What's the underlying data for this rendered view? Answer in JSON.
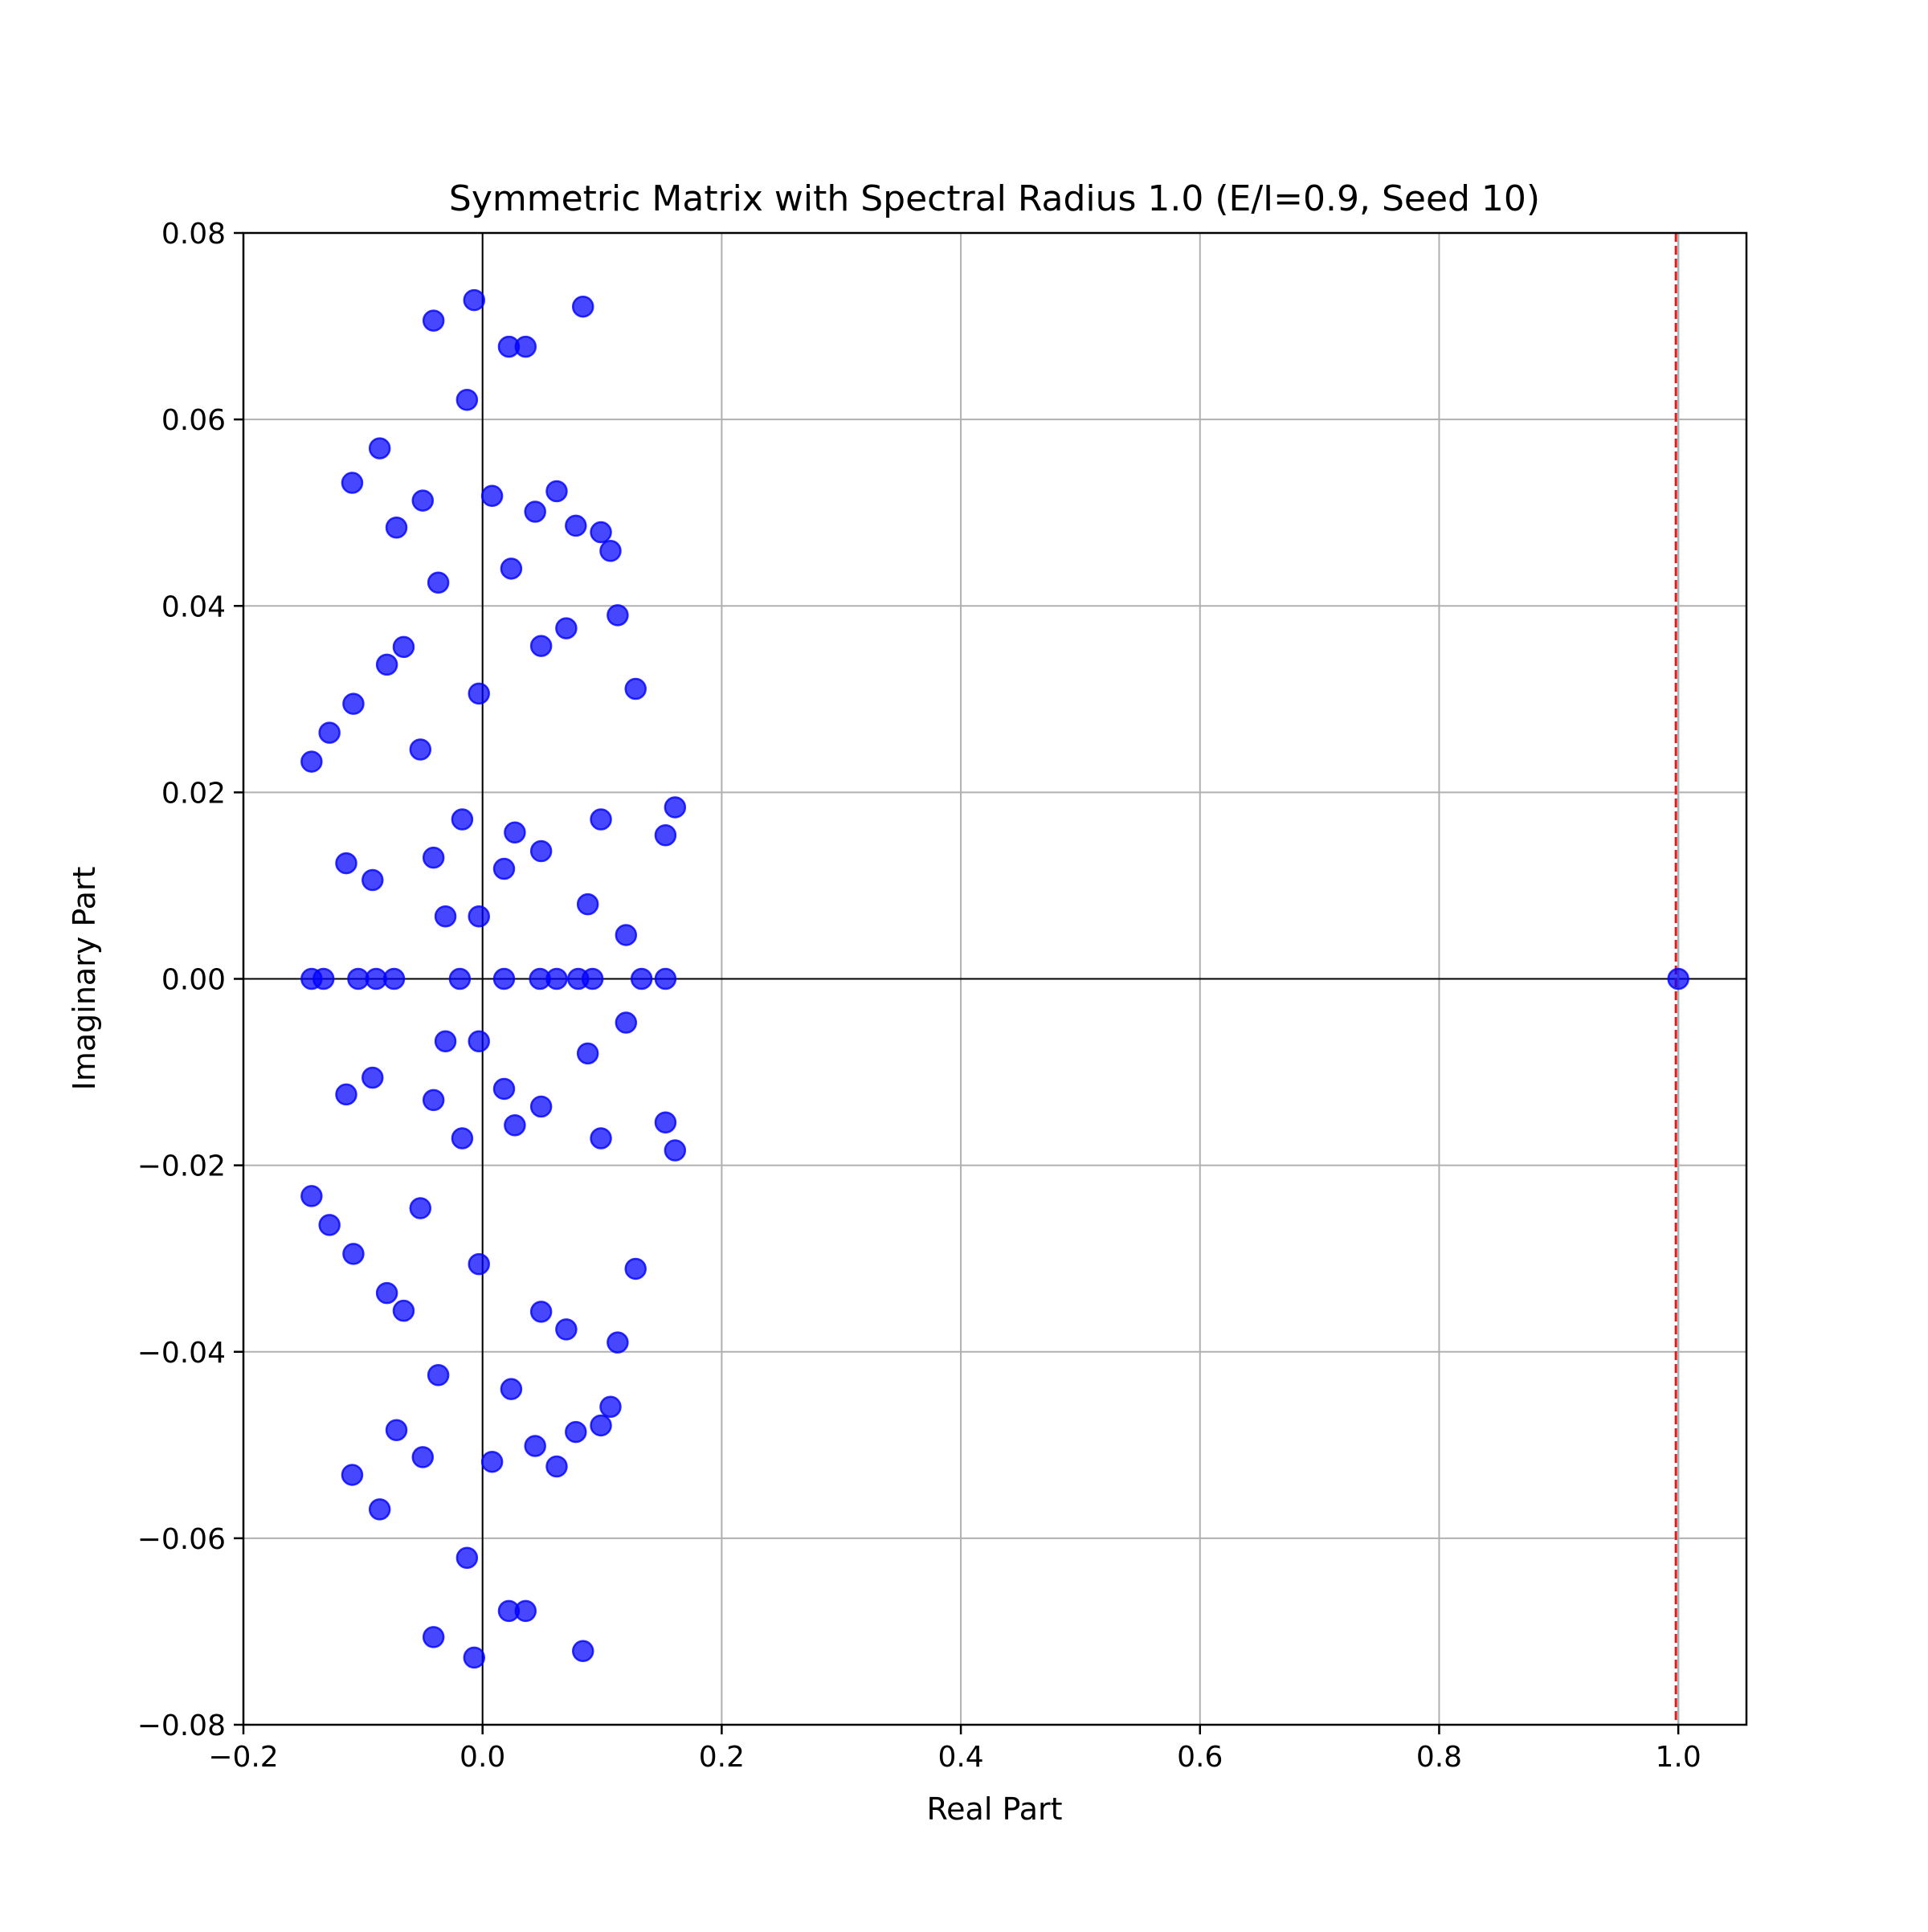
{
  "chart_data": {
    "type": "scatter",
    "title": "Symmetric Matrix with Spectral Radius 1.0 (E/I=0.9, Seed 10)",
    "xlabel": "Real Part",
    "ylabel": "Imaginary Part",
    "xlim": [
      -0.2,
      1.057
    ],
    "ylim": [
      -0.08,
      0.08
    ],
    "x_ticks": [
      -0.2,
      0.0,
      0.2,
      0.4,
      0.6,
      0.8,
      1.0
    ],
    "x_tick_labels": [
      "−0.2",
      "0.0",
      "0.2",
      "0.4",
      "0.6",
      "0.8",
      "1.0"
    ],
    "y_ticks": [
      -0.08,
      -0.06,
      -0.04,
      -0.02,
      0.0,
      0.02,
      0.04,
      0.06,
      0.08
    ],
    "y_tick_labels": [
      "−0.08",
      "−0.06",
      "−0.04",
      "−0.02",
      "0.00",
      "0.02",
      "0.04",
      "0.06",
      "0.08"
    ],
    "grid": true,
    "reference_lines": {
      "vertical_dashed_red_x": 0.998,
      "vertical_solid_gray_x": 1.0,
      "horizontal_axis_y": 0.0,
      "vertical_axis_x": 0.0
    },
    "colors": {
      "points": "#0000ff",
      "dashed_line": "#e31a1c",
      "grid": "#b0b0b0",
      "axis_lines": "#000000"
    },
    "points": [
      {
        "x": -0.143,
        "y": 0.0
      },
      {
        "x": -0.133,
        "y": 0.0
      },
      {
        "x": -0.104,
        "y": 0.0
      },
      {
        "x": -0.089,
        "y": 0.0
      },
      {
        "x": -0.074,
        "y": 0.0
      },
      {
        "x": -0.019,
        "y": 0.0
      },
      {
        "x": 0.018,
        "y": 0.0
      },
      {
        "x": 0.048,
        "y": 0.0
      },
      {
        "x": 0.062,
        "y": 0.0
      },
      {
        "x": 0.08,
        "y": 0.0
      },
      {
        "x": 0.092,
        "y": 0.0
      },
      {
        "x": 0.133,
        "y": 0.0
      },
      {
        "x": 0.153,
        "y": 0.0
      },
      {
        "x": 1.0,
        "y": 0.0
      },
      {
        "x": -0.007,
        "y": 0.0728
      },
      {
        "x": -0.007,
        "y": -0.0728
      },
      {
        "x": -0.041,
        "y": 0.0706
      },
      {
        "x": -0.041,
        "y": -0.0706
      },
      {
        "x": 0.084,
        "y": 0.0721
      },
      {
        "x": 0.084,
        "y": -0.0721
      },
      {
        "x": 0.022,
        "y": 0.0678
      },
      {
        "x": 0.022,
        "y": -0.0678
      },
      {
        "x": 0.036,
        "y": 0.0678
      },
      {
        "x": 0.036,
        "y": -0.0678
      },
      {
        "x": -0.013,
        "y": 0.0621
      },
      {
        "x": -0.013,
        "y": -0.0621
      },
      {
        "x": -0.086,
        "y": 0.0569
      },
      {
        "x": -0.086,
        "y": -0.0569
      },
      {
        "x": -0.109,
        "y": 0.0532
      },
      {
        "x": -0.109,
        "y": -0.0532
      },
      {
        "x": -0.05,
        "y": 0.0513
      },
      {
        "x": -0.05,
        "y": -0.0513
      },
      {
        "x": 0.008,
        "y": 0.0518
      },
      {
        "x": 0.008,
        "y": -0.0518
      },
      {
        "x": 0.062,
        "y": 0.0523
      },
      {
        "x": 0.062,
        "y": -0.0523
      },
      {
        "x": 0.044,
        "y": 0.0501
      },
      {
        "x": 0.044,
        "y": -0.0501
      },
      {
        "x": -0.072,
        "y": 0.0484
      },
      {
        "x": -0.072,
        "y": -0.0484
      },
      {
        "x": 0.078,
        "y": 0.0486
      },
      {
        "x": 0.078,
        "y": -0.0486
      },
      {
        "x": 0.099,
        "y": 0.0479
      },
      {
        "x": 0.099,
        "y": -0.0479
      },
      {
        "x": 0.107,
        "y": 0.0459
      },
      {
        "x": 0.107,
        "y": -0.0459
      },
      {
        "x": 0.024,
        "y": 0.044
      },
      {
        "x": 0.024,
        "y": -0.044
      },
      {
        "x": -0.037,
        "y": 0.0425
      },
      {
        "x": -0.037,
        "y": -0.0425
      },
      {
        "x": 0.113,
        "y": 0.039
      },
      {
        "x": 0.113,
        "y": -0.039
      },
      {
        "x": 0.07,
        "y": 0.0376
      },
      {
        "x": 0.07,
        "y": -0.0376
      },
      {
        "x": 0.049,
        "y": 0.0357
      },
      {
        "x": 0.049,
        "y": -0.0357
      },
      {
        "x": -0.066,
        "y": 0.0356
      },
      {
        "x": -0.066,
        "y": -0.0356
      },
      {
        "x": -0.08,
        "y": 0.0337
      },
      {
        "x": -0.08,
        "y": -0.0337
      },
      {
        "x": 0.128,
        "y": 0.0311
      },
      {
        "x": 0.128,
        "y": -0.0311
      },
      {
        "x": -0.003,
        "y": 0.0306
      },
      {
        "x": -0.003,
        "y": -0.0306
      },
      {
        "x": -0.108,
        "y": 0.0295
      },
      {
        "x": -0.108,
        "y": -0.0295
      },
      {
        "x": -0.128,
        "y": 0.0264
      },
      {
        "x": -0.128,
        "y": -0.0264
      },
      {
        "x": -0.052,
        "y": 0.0246
      },
      {
        "x": -0.052,
        "y": -0.0246
      },
      {
        "x": -0.143,
        "y": 0.0233
      },
      {
        "x": -0.143,
        "y": -0.0233
      },
      {
        "x": 0.161,
        "y": 0.0184
      },
      {
        "x": 0.161,
        "y": -0.0184
      },
      {
        "x": -0.017,
        "y": 0.0171
      },
      {
        "x": -0.017,
        "y": -0.0171
      },
      {
        "x": 0.099,
        "y": 0.0171
      },
      {
        "x": 0.099,
        "y": -0.0171
      },
      {
        "x": 0.027,
        "y": 0.0157
      },
      {
        "x": 0.027,
        "y": -0.0157
      },
      {
        "x": 0.153,
        "y": 0.0154
      },
      {
        "x": 0.153,
        "y": -0.0154
      },
      {
        "x": 0.049,
        "y": 0.0137
      },
      {
        "x": 0.049,
        "y": -0.0137
      },
      {
        "x": -0.041,
        "y": 0.013
      },
      {
        "x": -0.041,
        "y": -0.013
      },
      {
        "x": -0.114,
        "y": 0.0124
      },
      {
        "x": -0.114,
        "y": -0.0124
      },
      {
        "x": 0.018,
        "y": 0.0118
      },
      {
        "x": 0.018,
        "y": -0.0118
      },
      {
        "x": -0.092,
        "y": 0.0106
      },
      {
        "x": -0.092,
        "y": -0.0106
      },
      {
        "x": 0.088,
        "y": 0.008
      },
      {
        "x": 0.088,
        "y": -0.008
      },
      {
        "x": -0.031,
        "y": 0.0067
      },
      {
        "x": -0.031,
        "y": -0.0067
      },
      {
        "x": -0.003,
        "y": 0.0067
      },
      {
        "x": -0.003,
        "y": -0.0067
      },
      {
        "x": 0.12,
        "y": 0.0047
      },
      {
        "x": 0.12,
        "y": -0.0047
      }
    ]
  }
}
